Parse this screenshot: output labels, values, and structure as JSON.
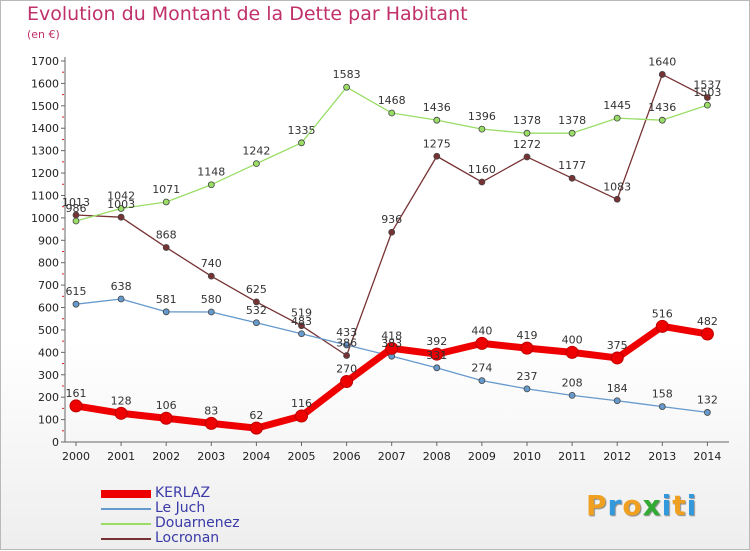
{
  "title": "Evolution du Montant de la Dette par Habitant",
  "subtitle": "(en €)",
  "logo": {
    "letters": [
      "P",
      "r",
      "o",
      "x",
      "i",
      "t",
      "i"
    ],
    "colors": [
      "#f0a020",
      "#3399dd",
      "#f0a020",
      "#33aa33",
      "#3399dd",
      "#f0a020",
      "#3399dd"
    ]
  },
  "chart_data": {
    "type": "line",
    "title": "Evolution du Montant de la Dette par Habitant",
    "subtitle": "(en €)",
    "x": [
      "2000",
      "2001",
      "2002",
      "2003",
      "2004",
      "2005",
      "2006",
      "2007",
      "2008",
      "2009",
      "2010",
      "2011",
      "2012",
      "2013",
      "2014"
    ],
    "ylim": [
      0,
      1700
    ],
    "yticks": [
      0,
      100,
      200,
      300,
      400,
      500,
      600,
      700,
      800,
      900,
      1000,
      1100,
      1200,
      1300,
      1400,
      1500,
      1600,
      1700
    ],
    "grid": false,
    "legend": "bottom-left",
    "series": [
      {
        "name": "KERLAZ",
        "color": "#ee0000",
        "values": [
          161,
          128,
          106,
          83,
          62,
          116,
          270,
          418,
          392,
          440,
          419,
          400,
          375,
          516,
          482
        ]
      },
      {
        "name": "Le Juch",
        "color": "#6699cc",
        "values": [
          615,
          638,
          581,
          580,
          532,
          483,
          433,
          383,
          331,
          274,
          237,
          208,
          184,
          158,
          132
        ]
      },
      {
        "name": "Douarnenez",
        "color": "#99dd66",
        "values": [
          986,
          1042,
          1071,
          1148,
          1242,
          1335,
          1583,
          1468,
          1436,
          1396,
          1378,
          1378,
          1445,
          1436,
          1503
        ]
      },
      {
        "name": "Locronan",
        "color": "#773333",
        "values": [
          1013,
          1003,
          868,
          740,
          625,
          519,
          386,
          936,
          1275,
          1160,
          1272,
          1177,
          1083,
          1640,
          1537
        ]
      }
    ]
  }
}
